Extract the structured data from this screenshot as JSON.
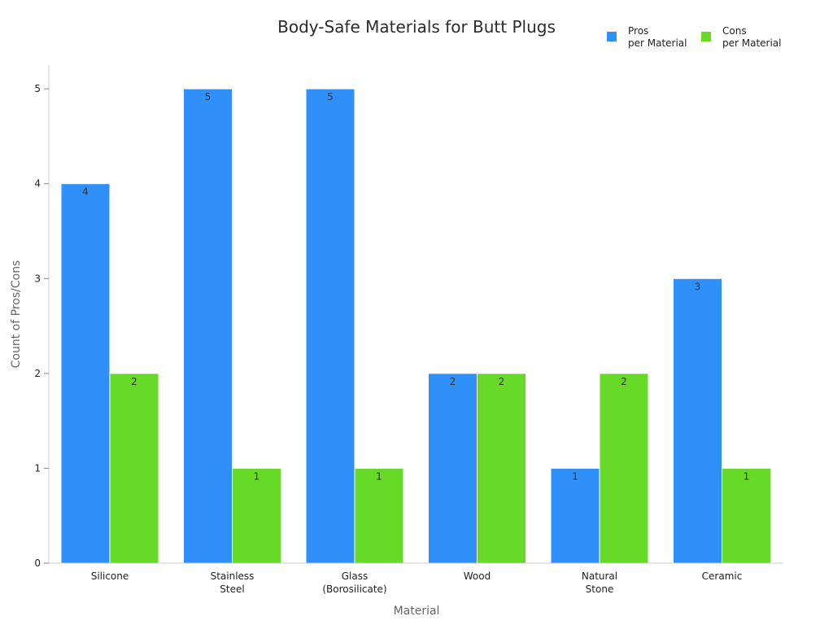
{
  "chart_data": {
    "type": "bar",
    "title": "Body-Safe Materials for Butt Plugs",
    "xlabel": "Material",
    "ylabel": "Count of Pros/Cons",
    "ylim": [
      0,
      5.25
    ],
    "yticks": [
      0,
      1,
      2,
      3,
      4,
      5
    ],
    "grid": false,
    "legend_position": "top-right",
    "categories": [
      [
        "Silicone"
      ],
      [
        "Stainless",
        "Steel"
      ],
      [
        "Glass",
        "(Borosilicate)"
      ],
      [
        "Wood"
      ],
      [
        "Natural",
        "Stone"
      ],
      [
        "Ceramic"
      ]
    ],
    "series": [
      {
        "name": [
          "Pros",
          "per Material"
        ],
        "color": "#2e90f8",
        "values": [
          4,
          5,
          5,
          2,
          1,
          3
        ]
      },
      {
        "name": [
          "Cons",
          "per Material"
        ],
        "color": "#66da26",
        "values": [
          2,
          1,
          1,
          2,
          2,
          1
        ]
      }
    ]
  }
}
